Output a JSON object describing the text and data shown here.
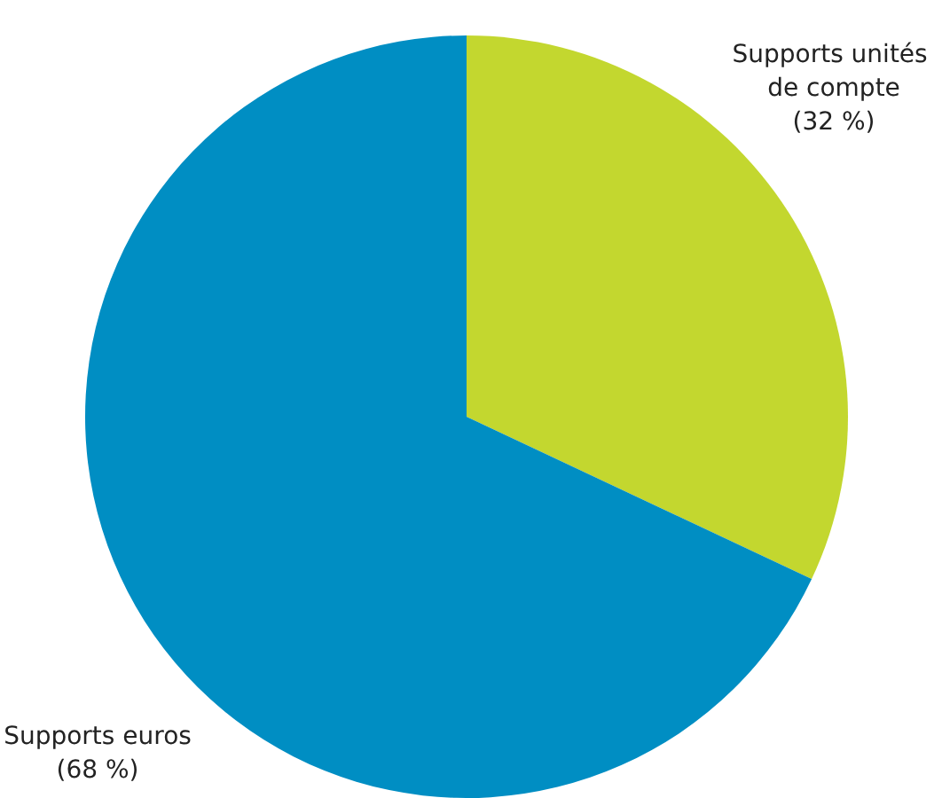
{
  "chart_data": {
    "type": "pie",
    "categories": [
      "Supports unités de compte",
      "Supports euros"
    ],
    "values": [
      32,
      68
    ],
    "colors": [
      "#c3d72f",
      "#008ec3"
    ],
    "value_labels": [
      "(32 %)",
      "(68 %)"
    ]
  }
}
